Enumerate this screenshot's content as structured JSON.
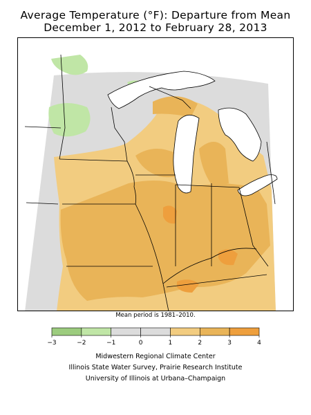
{
  "title": {
    "line1": "Average Temperature (°F): Departure from Mean",
    "line2": "December 1, 2012 to February 28, 2013"
  },
  "note": "Mean period is 1981–2010.",
  "legend": {
    "bins": [
      {
        "color": "#9ccc7e"
      },
      {
        "color": "#c0e6a6"
      },
      {
        "color": "#dcdcdc"
      },
      {
        "color": "#dcdcdc"
      },
      {
        "color": "#f2cc80"
      },
      {
        "color": "#e9b458"
      },
      {
        "color": "#ee9f3d"
      }
    ],
    "ticks": [
      "−3",
      "−2",
      "−1",
      "0",
      "1",
      "2",
      "3",
      "4"
    ]
  },
  "credits": {
    "line1": "Midwestern Regional Climate Center",
    "line2": "Illinois State Water Survey, Prairie Research Institute",
    "line3": "University of Illinois at Urbana–Champaign"
  },
  "colors": {
    "neutral": "#dcdcdc",
    "cool1": "#c0e6a6",
    "warm1": "#f2cc80",
    "warm2": "#e9b458",
    "warm3": "#ee9f3d",
    "water": "#ffffff",
    "border": "#000000"
  }
}
